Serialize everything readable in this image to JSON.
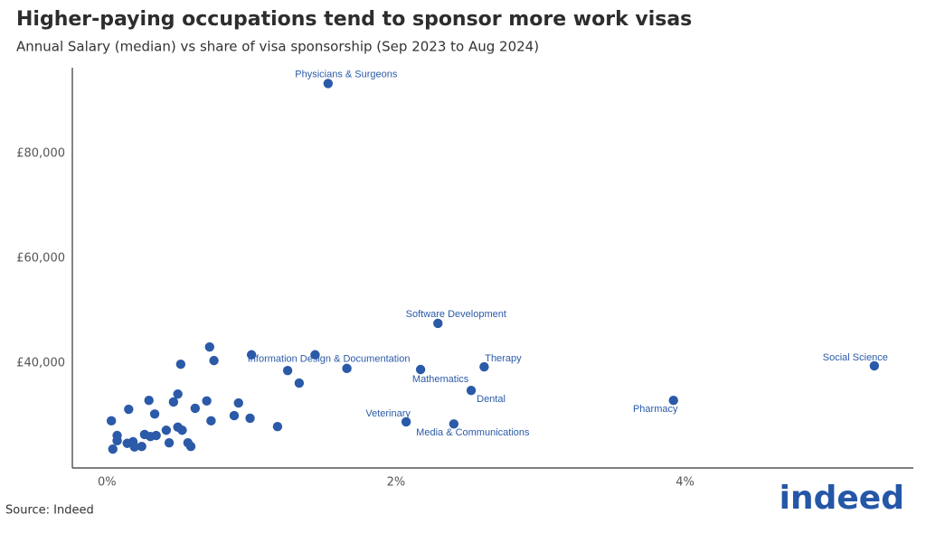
{
  "chart_data": {
    "type": "scatter",
    "title": "Higher-paying occupations tend to sponsor more work visas",
    "subtitle": "Annual Salary (median) vs share of visa sponsorship (Sep 2023 to Aug 2024)",
    "source": "Source: Indeed",
    "logo": "indeed",
    "xlim": [
      -0.24,
      5.58
    ],
    "ylim": [
      20000,
      96400
    ],
    "xticks": [
      {
        "value": 0,
        "label": "0%"
      },
      {
        "value": 2,
        "label": "2%"
      },
      {
        "value": 4,
        "label": "4%"
      }
    ],
    "yticks": [
      {
        "value": 40000,
        "label": "£40,000"
      },
      {
        "value": 60000,
        "label": "£60,000"
      },
      {
        "value": 80000,
        "label": "£80,000"
      }
    ],
    "color": "#2b5aa8",
    "labels": [
      "Physicians & Surgeons",
      "Software Development",
      "Information Design & Documentation",
      "Mathematics",
      "Therapy",
      "Dental",
      "Veterinary",
      "Media & Communications",
      "Pharmacy",
      "Social Science",
      null,
      null,
      null,
      null,
      null,
      null,
      null,
      null,
      null,
      null,
      null,
      null,
      null,
      null,
      null,
      null,
      null,
      null,
      null,
      null,
      null,
      null,
      null,
      null,
      null,
      null,
      null,
      null,
      null,
      null,
      null,
      null,
      null,
      null,
      null,
      null
    ],
    "x": [
      1.53,
      2.29,
      1.66,
      2.17,
      2.61,
      2.52,
      2.07,
      2.4,
      3.92,
      5.31,
      0.03,
      0.15,
      0.07,
      0.07,
      0.14,
      0.18,
      0.19,
      0.24,
      0.04,
      0.26,
      0.3,
      0.34,
      0.29,
      0.33,
      0.41,
      0.43,
      0.46,
      0.49,
      0.51,
      0.49,
      0.52,
      0.56,
      0.58,
      0.61,
      0.69,
      0.72,
      0.71,
      0.74,
      0.88,
      0.91,
      0.99,
      1.0,
      1.18,
      1.25,
      1.33,
      1.44
    ],
    "values": [
      93400,
      47600,
      39000,
      38800,
      39300,
      34800,
      28800,
      28400,
      32900,
      39500,
      29000,
      31200,
      26200,
      25200,
      24700,
      25000,
      24000,
      24100,
      23600,
      26400,
      26000,
      26200,
      32900,
      30300,
      27200,
      24800,
      32600,
      34100,
      39800,
      27800,
      27200,
      24800,
      24100,
      31400,
      32800,
      29000,
      43100,
      40500,
      30000,
      32400,
      29500,
      41600,
      27900,
      38600,
      36200,
      41600
    ]
  }
}
